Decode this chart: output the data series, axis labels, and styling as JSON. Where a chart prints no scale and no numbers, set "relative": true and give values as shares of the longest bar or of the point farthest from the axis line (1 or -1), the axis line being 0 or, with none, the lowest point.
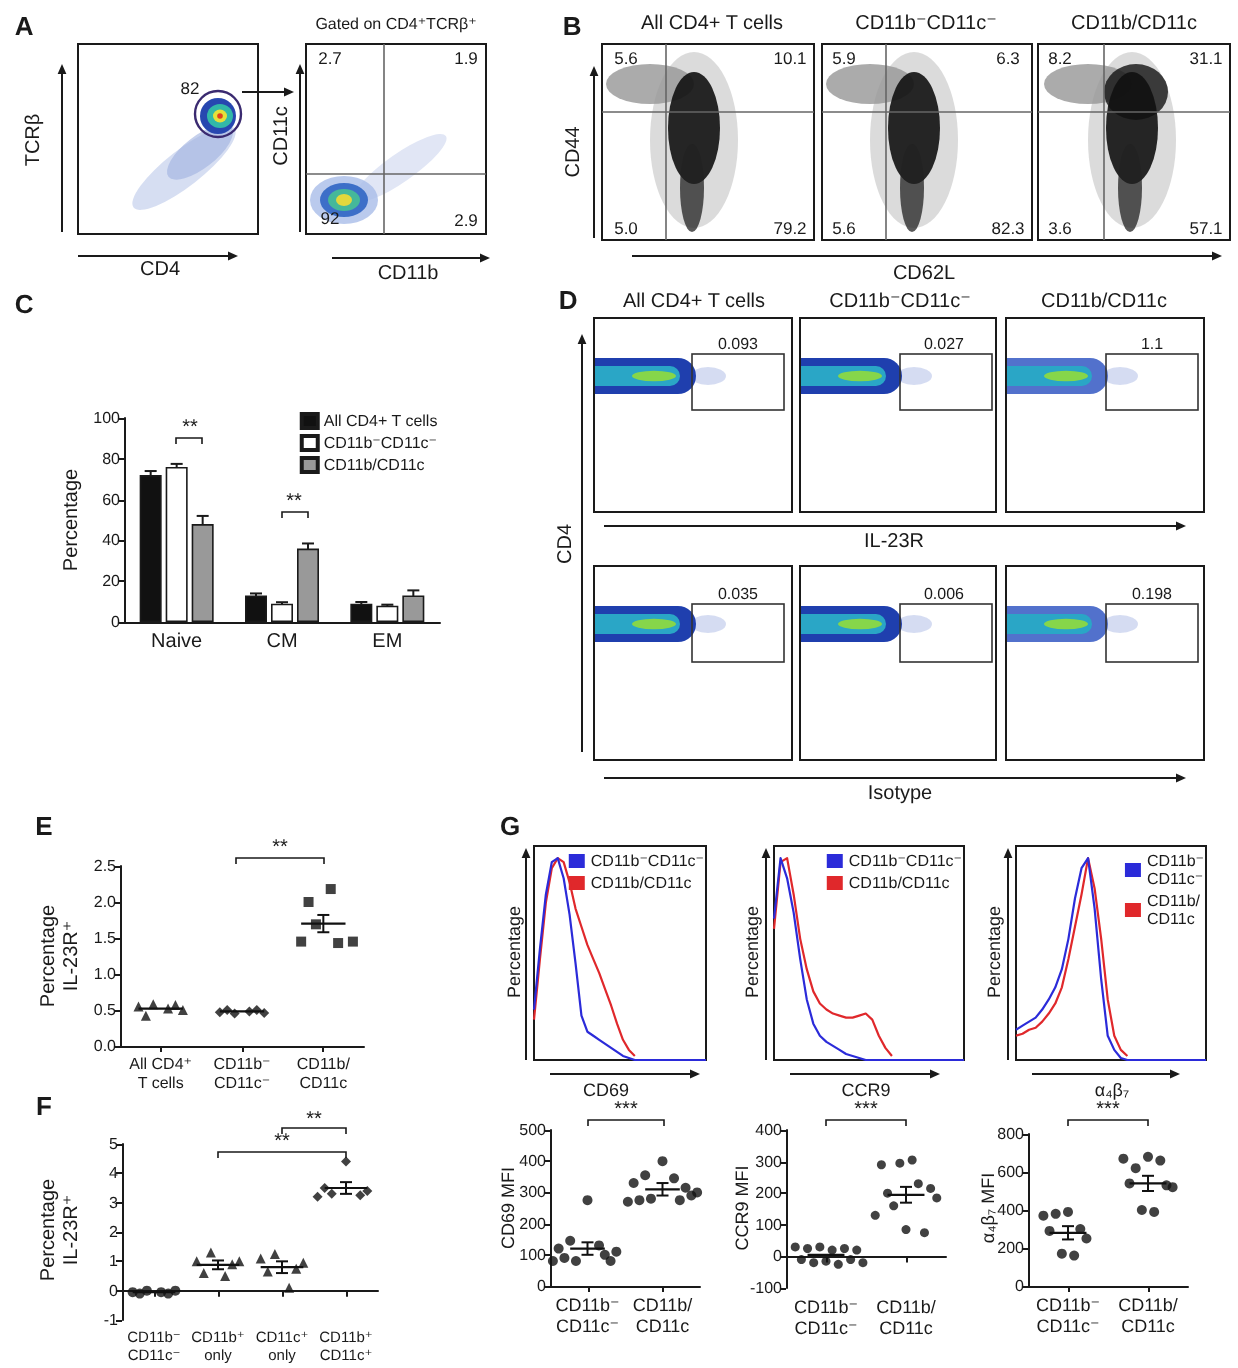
{
  "chart_data": [
    {
      "type": "other",
      "xlabel": "CD4",
      "ylabel": "TCRβ",
      "annotations": [
        "A",
        "82"
      ]
    },
    {
      "type": "other",
      "title": "Gated on CD4⁺TCRβ⁺",
      "xlabel": "CD11b",
      "ylabel": "CD11c",
      "annotations": [
        "2.7",
        "1.9",
        "92",
        "2.9"
      ]
    },
    {
      "type": "other",
      "title": "All CD4+ T cells",
      "ylabel": "CD44",
      "annotations": [
        "B",
        "5.6",
        "10.1",
        "5.0",
        "79.2"
      ]
    },
    {
      "type": "other",
      "title": "CD11b⁻CD11c⁻",
      "xlabel": "CD62L",
      "annotations": [
        "5.9",
        "6.3",
        "5.6",
        "82.3"
      ]
    },
    {
      "type": "other",
      "title": "CD11b/CD11c",
      "annotations": [
        "8.2",
        "31.1",
        "3.6",
        "57.1"
      ]
    },
    {
      "type": "bar",
      "categories": [
        "Naive",
        "CM",
        "EM"
      ],
      "ylabel": "Percentage",
      "ylim": [
        0,
        100
      ],
      "yticks": [
        0,
        20,
        40,
        60,
        80,
        100
      ],
      "legend": "top right",
      "annotations": [
        "C",
        "**",
        "**"
      ],
      "series": [
        {
          "name": "All CD4+ T cells",
          "color": "#111111",
          "values": [
            72,
            13,
            9
          ],
          "errors": [
            2,
            1,
            0.8
          ]
        },
        {
          "name": "CD11b⁻CD11c⁻",
          "color": "#ffffff",
          "values": [
            76,
            9,
            8
          ],
          "errors": [
            1.5,
            0.7,
            0.5
          ]
        },
        {
          "name": "CD11b/CD11c",
          "color": "#999999",
          "values": [
            48,
            36,
            13
          ],
          "errors": [
            4,
            2.5,
            2.5
          ]
        }
      ]
    },
    {
      "type": "other",
      "title": "All CD4+ T cells",
      "ylabel": "CD4",
      "annotations": [
        "D",
        "0.093"
      ]
    },
    {
      "type": "other",
      "title": "CD11b⁻CD11c⁻",
      "xlabel": "IL-23R",
      "annotations": [
        "0.027"
      ]
    },
    {
      "type": "other",
      "title": "CD11b/CD11c",
      "annotations": [
        "1.1"
      ]
    },
    {
      "type": "other",
      "annotations": [
        "0.035"
      ]
    },
    {
      "type": "other",
      "xlabel": "Isotype",
      "annotations": [
        "0.006"
      ]
    },
    {
      "type": "other",
      "annotations": [
        "0.198"
      ]
    },
    {
      "type": "scatter",
      "categories": [
        null,
        null,
        null,
        null,
        null,
        "All CD4⁺\nT cells",
        null,
        null,
        null,
        null,
        null,
        null,
        null,
        null,
        null,
        null,
        "CD11b⁻\nCD11c⁻",
        null,
        null,
        null,
        null,
        null,
        null,
        null,
        null,
        null,
        null,
        "CD11b/\nCD11c",
        null,
        null,
        null,
        null,
        null
      ],
      "ylabel": "Percentage\nIL-23R⁺",
      "ylim": [
        0,
        2.5
      ],
      "yticks": [
        {
          "value": 0,
          "label": "0.0"
        },
        0.5,
        {
          "value": 1,
          "label": "1.0"
        },
        1.5,
        {
          "value": 2,
          "label": "2.0"
        },
        2.5
      ],
      "annotations": [
        "E",
        "**"
      ],
      "series": [
        {
          "marker": "triangle",
          "color": "#111111",
          "values": [
            null,
            null,
            0.55,
            0.42,
            0.58,
            null,
            0.52,
            0.57,
            0.5,
            null,
            null,
            null,
            null,
            null,
            null,
            null,
            null,
            null,
            null,
            null,
            null,
            null,
            null,
            null,
            null,
            null,
            null,
            null,
            null,
            null,
            null,
            null,
            null
          ]
        },
        {
          "marker": "diamond",
          "color": "#111111",
          "values": [
            null,
            null,
            null,
            null,
            null,
            null,
            null,
            null,
            null,
            null,
            null,
            null,
            null,
            0.47,
            0.5,
            0.45,
            null,
            0.48,
            0.5,
            0.46,
            null,
            null,
            null,
            null,
            null,
            null,
            null,
            null,
            null,
            null,
            null,
            null,
            null
          ]
        },
        {
          "marker": "square",
          "color": "#111111",
          "values": [
            null,
            null,
            null,
            null,
            null,
            null,
            null,
            null,
            null,
            null,
            null,
            null,
            null,
            null,
            null,
            null,
            null,
            null,
            null,
            null,
            null,
            null,
            null,
            null,
            1.45,
            2.0,
            1.69,
            null,
            2.18,
            1.43,
            null,
            1.45,
            null
          ]
        },
        {
          "type": "line",
          "color": "#111111",
          "values": [
            null,
            null,
            0.52,
            0.52,
            0.52,
            0.52,
            0.52,
            0.52,
            0.52,
            null,
            null,
            null,
            null,
            0.48,
            0.48,
            0.48,
            0.48,
            0.48,
            0.48,
            0.48,
            null,
            null,
            null,
            null,
            1.7,
            1.7,
            1.7,
            1.7,
            1.7,
            1.7,
            1.7,
            null,
            null
          ],
          "errors": [
            null,
            null,
            null,
            null,
            null,
            null,
            null,
            null,
            null,
            null,
            null,
            null,
            null,
            null,
            null,
            null,
            null,
            null,
            null,
            null,
            null,
            null,
            null,
            null,
            null,
            null,
            null,
            0.12,
            null,
            null,
            null,
            null,
            null
          ]
        }
      ]
    },
    {
      "type": "scatter",
      "categories": [
        null,
        null,
        null,
        null,
        "CD11b⁻\nCD11c⁻",
        null,
        null,
        null,
        null,
        null,
        null,
        null,
        null,
        "CD11b⁺\nonly",
        null,
        null,
        null,
        null,
        null,
        null,
        null,
        null,
        "CD11c⁺\nonly",
        null,
        null,
        null,
        null,
        null,
        null,
        null,
        null,
        "CD11b⁺\nCD11c⁺",
        null,
        null,
        null,
        null
      ],
      "ylabel": "Percentage\nIL-23R⁺",
      "ylim": [
        -1,
        5
      ],
      "yticks": [
        -1,
        0,
        1,
        2,
        3,
        4,
        5
      ],
      "annotations": [
        "F",
        "**",
        "**"
      ],
      "series": [
        {
          "marker": "circle",
          "color": "#111111",
          "values": [
            null,
            -0.05,
            -0.1,
            0,
            null,
            -0.05,
            -0.1,
            0,
            null,
            null,
            null,
            null,
            null,
            null,
            null,
            null,
            null,
            null,
            null,
            null,
            null,
            null,
            null,
            null,
            null,
            null,
            null,
            null,
            null,
            null,
            null,
            null,
            null,
            null,
            null,
            null
          ]
        },
        {
          "marker": "triangle",
          "color": "#111111",
          "values": [
            null,
            null,
            null,
            null,
            null,
            null,
            null,
            null,
            null,
            null,
            1.0,
            0.6,
            1.3,
            null,
            0.5,
            0.9,
            1.0,
            null,
            null,
            null,
            null,
            null,
            null,
            null,
            null,
            null,
            null,
            null,
            null,
            null,
            null,
            null,
            null,
            null,
            null,
            null
          ]
        },
        {
          "marker": "triangle",
          "color": "#111111",
          "values": [
            null,
            null,
            null,
            null,
            null,
            null,
            null,
            null,
            null,
            null,
            null,
            null,
            null,
            null,
            null,
            null,
            null,
            null,
            null,
            1.1,
            0.65,
            1.25,
            null,
            0.1,
            0.75,
            0.95,
            null,
            null,
            null,
            null,
            null,
            null,
            null,
            null,
            null,
            null
          ]
        },
        {
          "marker": "diamond",
          "color": "#111111",
          "values": [
            null,
            null,
            null,
            null,
            null,
            null,
            null,
            null,
            null,
            null,
            null,
            null,
            null,
            null,
            null,
            null,
            null,
            null,
            null,
            null,
            null,
            null,
            null,
            null,
            null,
            null,
            null,
            3.2,
            3.5,
            3.3,
            null,
            4.4,
            null,
            3.25,
            3.4,
            null
          ]
        },
        {
          "type": "line",
          "color": "#111111",
          "values": [
            null,
            -0.05,
            -0.05,
            -0.05,
            -0.05,
            -0.05,
            -0.05,
            -0.05,
            null,
            null,
            0.88,
            0.88,
            0.88,
            0.88,
            0.88,
            0.88,
            0.88,
            null,
            null,
            0.8,
            0.8,
            0.8,
            0.8,
            0.8,
            0.8,
            0.8,
            null,
            null,
            3.5,
            3.5,
            3.5,
            3.5,
            3.5,
            3.5,
            3.5,
            null
          ],
          "errors": [
            null,
            null,
            null,
            null,
            null,
            null,
            null,
            null,
            null,
            null,
            null,
            null,
            null,
            0.15,
            null,
            null,
            null,
            null,
            null,
            null,
            null,
            null,
            0.2,
            null,
            null,
            null,
            null,
            null,
            null,
            null,
            null,
            0.2,
            null,
            null,
            null,
            null
          ]
        }
      ]
    },
    {
      "type": "line",
      "relative": true,
      "categories": [
        null,
        null,
        null,
        null,
        null,
        null,
        null,
        null,
        null,
        null,
        null,
        null,
        null,
        null,
        null,
        null,
        null,
        null,
        null,
        null,
        null,
        null,
        null,
        null,
        null,
        null,
        null,
        null,
        null,
        null
      ],
      "xlabel": "CD69",
      "ylabel": "Percentage",
      "legend": "top right",
      "annotations": [
        "G"
      ],
      "series": [
        {
          "name": "CD11b⁻CD11c⁻",
          "color": "#2b2bd9",
          "values": [
            0.25,
            0.55,
            0.82,
            0.98,
            1,
            0.9,
            0.72,
            0.48,
            0.22,
            0.14,
            0.12,
            0.1,
            0.08,
            0.06,
            0.04,
            0.02,
            0.01,
            0,
            0,
            0,
            0,
            0,
            0,
            0,
            0,
            0,
            0,
            0,
            0,
            0
          ]
        },
        {
          "name": "CD11b/CD11c",
          "color": "#e0282b",
          "values": [
            0.2,
            0.5,
            0.78,
            0.95,
            1,
            0.98,
            0.88,
            0.75,
            0.66,
            0.57,
            0.5,
            0.43,
            0.35,
            0.27,
            0.18,
            0.1,
            0.05,
            0.02,
            null,
            null,
            null,
            null,
            null,
            null,
            null,
            null,
            null,
            null,
            null,
            null
          ]
        }
      ]
    },
    {
      "type": "line",
      "relative": true,
      "categories": [
        null,
        null,
        null,
        null,
        null,
        null,
        null,
        null,
        null,
        null,
        null,
        null,
        null,
        null,
        null,
        null,
        null,
        null,
        null,
        null,
        null,
        null,
        null,
        null,
        null,
        null,
        null,
        null,
        null,
        null
      ],
      "xlabel": "CCR9",
      "ylabel": "Percentage",
      "legend": "top right",
      "series": [
        {
          "name": "CD11b⁻CD11c⁻",
          "color": "#2b2bd9",
          "values": [
            0.7,
            1,
            0.9,
            0.73,
            0.5,
            0.3,
            0.18,
            0.12,
            0.09,
            0.07,
            0.05,
            0.03,
            0.02,
            0.01,
            0,
            0,
            0,
            0,
            0,
            0,
            0,
            0,
            0,
            0,
            0,
            0,
            0,
            0,
            0,
            0
          ]
        },
        {
          "name": "CD11b/CD11c",
          "color": "#e0282b",
          "values": [
            0.65,
            0.98,
            1,
            0.82,
            0.6,
            0.45,
            0.34,
            0.28,
            0.25,
            0.23,
            0.22,
            0.21,
            0.21,
            0.22,
            0.23,
            0.2,
            0.12,
            0.06,
            0.02,
            null,
            null,
            null,
            null,
            null,
            null,
            null,
            null,
            null,
            null,
            null
          ]
        }
      ]
    },
    {
      "type": "line",
      "relative": true,
      "categories": [
        null,
        null,
        null,
        null,
        null,
        null,
        null,
        null,
        null,
        null,
        null,
        null,
        null,
        null,
        null,
        null,
        null,
        null,
        null,
        null,
        null,
        null,
        null,
        null,
        null,
        null,
        null,
        null,
        null,
        null
      ],
      "xlabel": "α₄β₇",
      "ylabel": "Percentage",
      "legend": "top right",
      "series": [
        {
          "name": "CD11b⁻\nCD11c⁻",
          "color": "#2b2bd9",
          "values": [
            0.15,
            0.17,
            0.19,
            0.21,
            0.25,
            0.3,
            0.36,
            0.45,
            0.6,
            0.8,
            0.95,
            1,
            0.75,
            0.4,
            0.12,
            0.05,
            0.01,
            0,
            0,
            0,
            0,
            0,
            0,
            0,
            0,
            0,
            0,
            0,
            0,
            0
          ]
        },
        {
          "name": "CD11b/\nCD11c",
          "color": "#e0282b",
          "values": [
            0.12,
            0.13,
            0.15,
            0.16,
            0.19,
            0.23,
            0.28,
            0.36,
            0.5,
            0.66,
            0.82,
            1,
            0.85,
            0.6,
            0.3,
            0.12,
            0.05,
            0.02,
            null,
            null,
            null,
            null,
            null,
            null,
            null,
            null,
            null,
            null,
            null,
            null
          ]
        }
      ]
    },
    {
      "type": "scatter",
      "categories": [
        null,
        null,
        null,
        null,
        null,
        null,
        "CD11b⁻\nCD11c⁻",
        null,
        null,
        null,
        null,
        null,
        null,
        null,
        null,
        null,
        null,
        null,
        null,
        "CD11b/\nCD11c",
        null,
        null,
        null,
        null,
        null,
        null
      ],
      "ylabel": "CD69 MFI",
      "ylim": [
        0,
        500
      ],
      "yticks": [
        0,
        100,
        200,
        300,
        400,
        500
      ],
      "annotations": [
        "***"
      ],
      "series": [
        {
          "marker": "circle",
          "color": "#111111",
          "values": [
            80,
            120,
            90,
            145,
            80,
            null,
            275,
            null,
            130,
            100,
            80,
            110,
            null,
            270,
            330,
            275,
            355,
            280,
            null,
            400,
            null,
            345,
            275,
            315,
            290,
            300
          ]
        },
        {
          "type": "line",
          "color": "#111111",
          "values": [
            null,
            null,
            null,
            120,
            120,
            120,
            120,
            120,
            120,
            120,
            null,
            null,
            null,
            null,
            null,
            null,
            310,
            310,
            310,
            310,
            310,
            310,
            310,
            null,
            null,
            null
          ],
          "errors": [
            null,
            null,
            null,
            null,
            null,
            null,
            20,
            null,
            null,
            null,
            null,
            null,
            null,
            null,
            null,
            null,
            null,
            null,
            null,
            20,
            null,
            null,
            null,
            null,
            null,
            null
          ]
        }
      ]
    },
    {
      "type": "scatter",
      "categories": [
        null,
        null,
        null,
        null,
        null,
        null,
        "CD11b⁻\nCD11c⁻",
        null,
        null,
        null,
        null,
        null,
        null,
        null,
        null,
        null,
        null,
        null,
        null,
        "CD11b/\nCD11c",
        null,
        null,
        null,
        null,
        null,
        null
      ],
      "ylabel": "CCR9 MFI",
      "ylim": [
        -100,
        400
      ],
      "yticks": [
        -100,
        0,
        100,
        200,
        300,
        400
      ],
      "annotations": [
        "***"
      ],
      "series": [
        {
          "marker": "circle",
          "color": "#111111",
          "values": [
            null,
            30,
            -10,
            25,
            -20,
            30,
            -15,
            20,
            -25,
            25,
            -10,
            20,
            -20,
            null,
            130,
            290,
            200,
            160,
            295,
            85,
            305,
            230,
            75,
            215,
            185,
            null
          ]
        },
        {
          "type": "line",
          "color": "#111111",
          "values": [
            null,
            null,
            null,
            5,
            5,
            5,
            5,
            5,
            5,
            5,
            null,
            null,
            null,
            null,
            null,
            null,
            195,
            195,
            195,
            195,
            195,
            195,
            195,
            null,
            null,
            null
          ],
          "errors": [
            null,
            null,
            null,
            null,
            null,
            null,
            null,
            null,
            null,
            null,
            null,
            null,
            null,
            null,
            null,
            null,
            null,
            null,
            null,
            25,
            null,
            null,
            null,
            null,
            null,
            null
          ]
        }
      ]
    },
    {
      "type": "scatter",
      "categories": [
        null,
        null,
        null,
        null,
        null,
        null,
        "CD11b⁻\nCD11c⁻",
        null,
        null,
        null,
        null,
        null,
        null,
        null,
        null,
        null,
        null,
        null,
        null,
        "CD11b/\nCD11c",
        null,
        null,
        null,
        null,
        null,
        null
      ],
      "ylabel": "α₄β₇ MFI",
      "ylim": [
        0,
        800
      ],
      "yticks": [
        0,
        200,
        400,
        600,
        800
      ],
      "annotations": [
        "***"
      ],
      "series": [
        {
          "marker": "circle",
          "color": "#111111",
          "values": [
            null,
            null,
            370,
            290,
            380,
            170,
            390,
            160,
            300,
            250,
            null,
            null,
            null,
            null,
            null,
            670,
            540,
            620,
            400,
            680,
            390,
            660,
            530,
            520,
            null,
            null
          ]
        },
        {
          "type": "line",
          "color": "#111111",
          "values": [
            null,
            null,
            null,
            280,
            280,
            280,
            280,
            280,
            280,
            280,
            null,
            null,
            null,
            null,
            null,
            null,
            540,
            540,
            540,
            540,
            540,
            540,
            540,
            null,
            null,
            null
          ],
          "errors": [
            null,
            null,
            null,
            null,
            null,
            null,
            35,
            null,
            null,
            null,
            null,
            null,
            null,
            null,
            null,
            null,
            null,
            null,
            null,
            40,
            null,
            null,
            null,
            null,
            null,
            null
          ]
        }
      ]
    }
  ]
}
